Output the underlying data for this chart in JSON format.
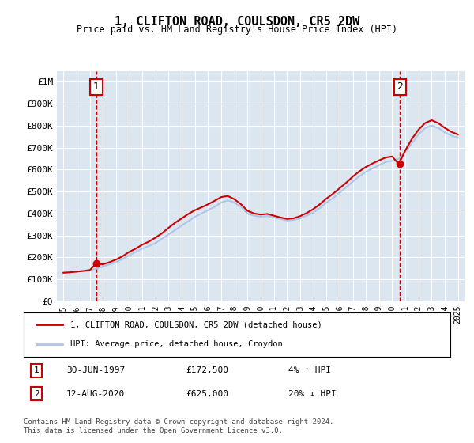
{
  "title": "1, CLIFTON ROAD, COULSDON, CR5 2DW",
  "subtitle": "Price paid vs. HM Land Registry's House Price Index (HPI)",
  "background_color": "#dce6f1",
  "plot_bg_color": "#dce6f1",
  "fig_bg_color": "#ffffff",
  "ylabel": "",
  "ylim": [
    0,
    1050000
  ],
  "yticks": [
    0,
    100000,
    200000,
    300000,
    400000,
    500000,
    600000,
    700000,
    800000,
    900000,
    1000000
  ],
  "ytick_labels": [
    "£0",
    "£100K",
    "£200K",
    "£300K",
    "£400K",
    "£500K",
    "£600K",
    "£700K",
    "£800K",
    "£900K",
    "£1M"
  ],
  "xlim_start": 1994.5,
  "xlim_end": 2025.5,
  "xticks": [
    1995,
    1996,
    1997,
    1998,
    1999,
    2000,
    2001,
    2002,
    2003,
    2004,
    2005,
    2006,
    2007,
    2008,
    2009,
    2010,
    2011,
    2012,
    2013,
    2014,
    2015,
    2016,
    2017,
    2018,
    2019,
    2020,
    2021,
    2022,
    2023,
    2024,
    2025
  ],
  "hpi_color": "#aec6e8",
  "price_color": "#cc0000",
  "marker_color": "#cc0000",
  "dashed_color": "#cc0000",
  "transaction1": {
    "year": 1997.5,
    "price": 172500,
    "label": "1",
    "date": "30-JUN-1997",
    "pct": "4% ↑ HPI"
  },
  "transaction2": {
    "year": 2020.6,
    "price": 625000,
    "label": "2",
    "date": "12-AUG-2020",
    "pct": "20% ↓ HPI"
  },
  "legend_line1": "1, CLIFTON ROAD, COULSDON, CR5 2DW (detached house)",
  "legend_line2": "HPI: Average price, detached house, Croydon",
  "footer": "Contains HM Land Registry data © Crown copyright and database right 2024.\nThis data is licensed under the Open Government Licence v3.0.",
  "hpi_x": [
    1995,
    1995.5,
    1996,
    1996.5,
    1997,
    1997.5,
    1998,
    1998.5,
    1999,
    1999.5,
    2000,
    2000.5,
    2001,
    2001.5,
    2002,
    2002.5,
    2003,
    2003.5,
    2004,
    2004.5,
    2005,
    2005.5,
    2006,
    2006.5,
    2007,
    2007.5,
    2008,
    2008.5,
    2009,
    2009.5,
    2010,
    2010.5,
    2011,
    2011.5,
    2012,
    2012.5,
    2013,
    2013.5,
    2014,
    2014.5,
    2015,
    2015.5,
    2016,
    2016.5,
    2017,
    2017.5,
    2018,
    2018.5,
    2019,
    2019.5,
    2020,
    2020.5,
    2021,
    2021.5,
    2022,
    2022.5,
    2023,
    2023.5,
    2024,
    2024.5,
    2025
  ],
  "hpi_y": [
    130000,
    132000,
    135000,
    138000,
    142000,
    148000,
    158000,
    168000,
    178000,
    192000,
    210000,
    225000,
    240000,
    252000,
    265000,
    285000,
    305000,
    325000,
    345000,
    365000,
    385000,
    400000,
    415000,
    430000,
    450000,
    460000,
    450000,
    430000,
    400000,
    390000,
    385000,
    388000,
    382000,
    375000,
    368000,
    370000,
    378000,
    390000,
    405000,
    425000,
    450000,
    470000,
    495000,
    520000,
    545000,
    570000,
    590000,
    605000,
    620000,
    635000,
    640000,
    650000,
    680000,
    720000,
    760000,
    790000,
    800000,
    790000,
    770000,
    755000,
    745000
  ],
  "price_x": [
    1995,
    1995.5,
    1996,
    1996.5,
    1997,
    1997.5,
    1998,
    1998.5,
    1999,
    1999.5,
    2000,
    2000.5,
    2001,
    2001.5,
    2002,
    2002.5,
    2003,
    2003.5,
    2004,
    2004.5,
    2005,
    2005.5,
    2006,
    2006.5,
    2007,
    2007.5,
    2008,
    2008.5,
    2009,
    2009.5,
    2010,
    2010.5,
    2011,
    2011.5,
    2012,
    2012.5,
    2013,
    2013.5,
    2014,
    2014.5,
    2015,
    2015.5,
    2016,
    2016.5,
    2017,
    2017.5,
    2018,
    2018.5,
    2019,
    2019.5,
    2020,
    2020.5,
    2021,
    2021.5,
    2022,
    2022.5,
    2023,
    2023.5,
    2024,
    2024.5,
    2025
  ],
  "price_y": [
    130000,
    132000,
    135000,
    138000,
    142000,
    172500,
    168000,
    178000,
    190000,
    205000,
    225000,
    240000,
    258000,
    272000,
    290000,
    310000,
    335000,
    358000,
    378000,
    398000,
    415000,
    428000,
    442000,
    458000,
    475000,
    480000,
    465000,
    442000,
    412000,
    400000,
    395000,
    398000,
    390000,
    382000,
    375000,
    378000,
    388000,
    402000,
    420000,
    442000,
    468000,
    490000,
    515000,
    540000,
    568000,
    592000,
    612000,
    628000,
    642000,
    655000,
    660000,
    625000,
    688000,
    740000,
    782000,
    812000,
    825000,
    812000,
    790000,
    772000,
    760000
  ]
}
